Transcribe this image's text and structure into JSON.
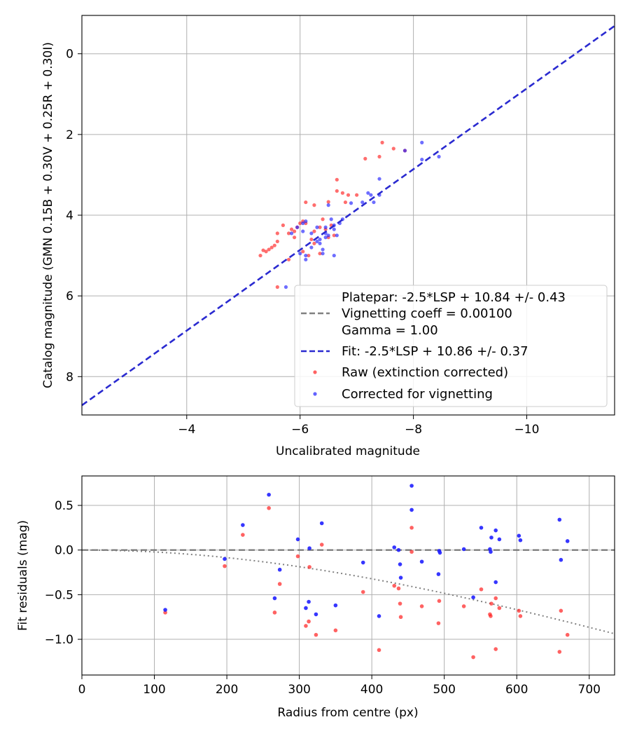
{
  "chart_data": [
    {
      "type": "scatter",
      "panel": "top",
      "xlabel": "Uncalibrated magnitude",
      "ylabel": "Catalog magnitude (GMN 0.15B + 0.30V + 0.25R + 0.30I)",
      "xlim": [
        -2.15,
        -11.55
      ],
      "ylim": [
        8.95,
        -0.95
      ],
      "x_inverted": true,
      "y_inverted": true,
      "xticks": [
        -4,
        -6,
        -8,
        -10
      ],
      "xtick_labels": [
        "−4",
        "−6",
        "−8",
        "−10"
      ],
      "yticks": [
        0,
        2,
        4,
        6,
        8
      ],
      "ytick_labels": [
        "0",
        "2",
        "4",
        "6",
        "8"
      ],
      "grid": true,
      "legend_position": "bottom-right",
      "legend": [
        {
          "label": "Platepar: -2.5*LSP + 10.84 +/- 0.43",
          "style": "none"
        },
        {
          "label": "Vignetting coeff = 0.00100",
          "style": "dashed",
          "color": "#808080"
        },
        {
          "label": "Gamma = 1.00",
          "style": "none"
        },
        {
          "label": "Fit: -2.5*LSP + 10.86 +/- 0.37",
          "style": "dashed",
          "color": "#2a2ad0"
        },
        {
          "label": "Raw (extinction corrected)",
          "style": "marker",
          "color": "#ff2020"
        },
        {
          "label": "Corrected for vignetting",
          "style": "marker",
          "color": "#2020ff"
        }
      ],
      "fit_line": {
        "slope": 1.0,
        "intercept": 10.86,
        "color": "#2a2ad0",
        "style": "dashed"
      },
      "series": [
        {
          "name": "Raw (extinction corrected)",
          "color": "#ff2020",
          "points": [
            [
              -5.3,
              5.0
            ],
            [
              -5.35,
              4.87
            ],
            [
              -5.4,
              4.9
            ],
            [
              -5.45,
              4.85
            ],
            [
              -5.5,
              4.8
            ],
            [
              -5.55,
              4.75
            ],
            [
              -5.6,
              4.65
            ],
            [
              -5.6,
              4.45
            ],
            [
              -5.7,
              4.25
            ],
            [
              -5.8,
              4.45
            ],
            [
              -5.85,
              4.35
            ],
            [
              -5.9,
              4.4
            ],
            [
              -5.95,
              4.3
            ],
            [
              -6.0,
              4.2
            ],
            [
              -6.05,
              4.15
            ],
            [
              -6.1,
              4.2
            ],
            [
              -6.1,
              3.68
            ],
            [
              -6.25,
              3.75
            ],
            [
              -6.25,
              4.4
            ],
            [
              -6.35,
              4.3
            ],
            [
              -6.4,
              4.1
            ],
            [
              -6.45,
              4.35
            ],
            [
              -6.5,
              3.67
            ],
            [
              -6.6,
              4.5
            ],
            [
              -6.65,
              3.4
            ],
            [
              -6.65,
              3.12
            ],
            [
              -6.75,
              3.45
            ],
            [
              -6.8,
              3.68
            ],
            [
              -6.85,
              3.5
            ],
            [
              -7.0,
              3.5
            ],
            [
              -7.15,
              2.6
            ],
            [
              -7.4,
              2.55
            ],
            [
              -7.45,
              2.2
            ],
            [
              -7.65,
              2.35
            ],
            [
              -7.85,
              2.4
            ],
            [
              -5.8,
              5.1
            ],
            [
              -6.15,
              5.0
            ],
            [
              -6.2,
              4.6
            ],
            [
              -6.35,
              4.95
            ],
            [
              -5.6,
              5.78
            ],
            [
              -6.55,
              4.25
            ],
            [
              -6.25,
              4.7
            ],
            [
              -5.9,
              4.55
            ],
            [
              -6.05,
              4.9
            ],
            [
              -6.5,
              4.55
            ]
          ]
        },
        {
          "name": "Corrected for vignetting",
          "color": "#2020ff",
          "points": [
            [
              -5.75,
              5.78
            ],
            [
              -5.85,
              4.45
            ],
            [
              -5.95,
              4.3
            ],
            [
              -6.05,
              4.2
            ],
            [
              -6.1,
              4.15
            ],
            [
              -6.1,
              5.0
            ],
            [
              -6.1,
              5.1
            ],
            [
              -6.2,
              4.8
            ],
            [
              -6.3,
              4.65
            ],
            [
              -6.35,
              4.6
            ],
            [
              -6.4,
              4.85
            ],
            [
              -6.4,
              4.95
            ],
            [
              -6.45,
              4.3
            ],
            [
              -6.45,
              4.45
            ],
            [
              -6.5,
              3.75
            ],
            [
              -6.5,
              4.5
            ],
            [
              -6.55,
              4.1
            ],
            [
              -6.6,
              4.35
            ],
            [
              -6.6,
              4.25
            ],
            [
              -6.65,
              4.5
            ],
            [
              -6.7,
              4.2
            ],
            [
              -6.6,
              5.0
            ],
            [
              -6.45,
              4.55
            ],
            [
              -6.2,
              4.45
            ],
            [
              -6.0,
              4.95
            ],
            [
              -6.75,
              4.1
            ],
            [
              -6.9,
              3.7
            ],
            [
              -7.1,
              3.68
            ],
            [
              -7.2,
              3.45
            ],
            [
              -7.25,
              3.5
            ],
            [
              -7.3,
              3.68
            ],
            [
              -7.4,
              3.5
            ],
            [
              -7.4,
              3.1
            ],
            [
              -7.85,
              2.4
            ],
            [
              -8.15,
              2.2
            ],
            [
              -8.15,
              2.62
            ],
            [
              -8.45,
              2.55
            ],
            [
              -6.35,
              4.7
            ],
            [
              -6.05,
              4.4
            ],
            [
              -6.3,
              4.3
            ]
          ]
        }
      ]
    },
    {
      "type": "scatter",
      "panel": "bottom",
      "xlabel": "Radius from centre (px)",
      "ylabel": "Fit residuals (mag)",
      "xlim": [
        0,
        735
      ],
      "ylim": [
        -1.4,
        0.83
      ],
      "xticks": [
        0,
        100,
        200,
        300,
        400,
        500,
        600,
        700
      ],
      "xtick_labels": [
        "0",
        "100",
        "200",
        "300",
        "400",
        "500",
        "600",
        "700"
      ],
      "yticks": [
        0.5,
        0.0,
        -0.5,
        -1.0
      ],
      "ytick_labels": [
        "0.5",
        "0.0",
        "−0.5",
        "−1.0"
      ],
      "grid": true,
      "zero_line": {
        "y": 0.0,
        "color": "#707070",
        "style": "dashed"
      },
      "vignetting_curve": {
        "coeff": 0.001,
        "color": "#808080",
        "style": "dotted"
      },
      "series": [
        {
          "name": "Raw (extinction corrected)",
          "color": "#ff2020",
          "points": [
            [
              115,
              -0.7
            ],
            [
              197,
              -0.18
            ],
            [
              222,
              0.17
            ],
            [
              258,
              0.47
            ],
            [
              266,
              -0.7
            ],
            [
              273,
              -0.38
            ],
            [
              298,
              -0.07
            ],
            [
              309,
              -0.85
            ],
            [
              313,
              -0.8
            ],
            [
              314,
              -0.19
            ],
            [
              323,
              -0.95
            ],
            [
              331,
              0.06
            ],
            [
              350,
              -0.9
            ],
            [
              388,
              -0.47
            ],
            [
              410,
              -1.12
            ],
            [
              431,
              -0.4
            ],
            [
              437,
              -0.43
            ],
            [
              439,
              -0.6
            ],
            [
              440,
              -0.75
            ],
            [
              455,
              -0.02
            ],
            [
              455,
              0.25
            ],
            [
              469,
              -0.63
            ],
            [
              492,
              -0.82
            ],
            [
              493,
              -0.57
            ],
            [
              527,
              -0.63
            ],
            [
              540,
              -1.2
            ],
            [
              551,
              -0.44
            ],
            [
              563,
              -0.72
            ],
            [
              564,
              -0.74
            ],
            [
              565,
              -0.6
            ],
            [
              571,
              -0.54
            ],
            [
              571,
              -1.11
            ],
            [
              576,
              -0.65
            ],
            [
              603,
              -0.68
            ],
            [
              605,
              -0.74
            ],
            [
              659,
              -1.14
            ],
            [
              661,
              -0.68
            ],
            [
              670,
              -0.95
            ]
          ]
        },
        {
          "name": "Corrected for vignetting",
          "color": "#2020ff",
          "points": [
            [
              115,
              -0.67
            ],
            [
              197,
              -0.1
            ],
            [
              222,
              0.28
            ],
            [
              258,
              0.62
            ],
            [
              266,
              -0.54
            ],
            [
              273,
              -0.22
            ],
            [
              298,
              0.12
            ],
            [
              309,
              -0.65
            ],
            [
              313,
              -0.58
            ],
            [
              314,
              0.02
            ],
            [
              323,
              -0.72
            ],
            [
              331,
              0.3
            ],
            [
              350,
              -0.62
            ],
            [
              388,
              -0.14
            ],
            [
              410,
              -0.74
            ],
            [
              431,
              0.03
            ],
            [
              437,
              0.0
            ],
            [
              439,
              -0.16
            ],
            [
              440,
              -0.31
            ],
            [
              455,
              0.72
            ],
            [
              455,
              0.45
            ],
            [
              469,
              -0.13
            ],
            [
              492,
              -0.27
            ],
            [
              493,
              -0.01
            ],
            [
              494,
              -0.03
            ],
            [
              527,
              0.01
            ],
            [
              540,
              -0.53
            ],
            [
              551,
              0.25
            ],
            [
              563,
              0.01
            ],
            [
              564,
              -0.02
            ],
            [
              565,
              0.14
            ],
            [
              571,
              0.22
            ],
            [
              571,
              -0.36
            ],
            [
              576,
              0.12
            ],
            [
              603,
              0.16
            ],
            [
              605,
              0.11
            ],
            [
              659,
              0.34
            ],
            [
              661,
              -0.11
            ],
            [
              670,
              0.1
            ]
          ]
        }
      ]
    }
  ]
}
